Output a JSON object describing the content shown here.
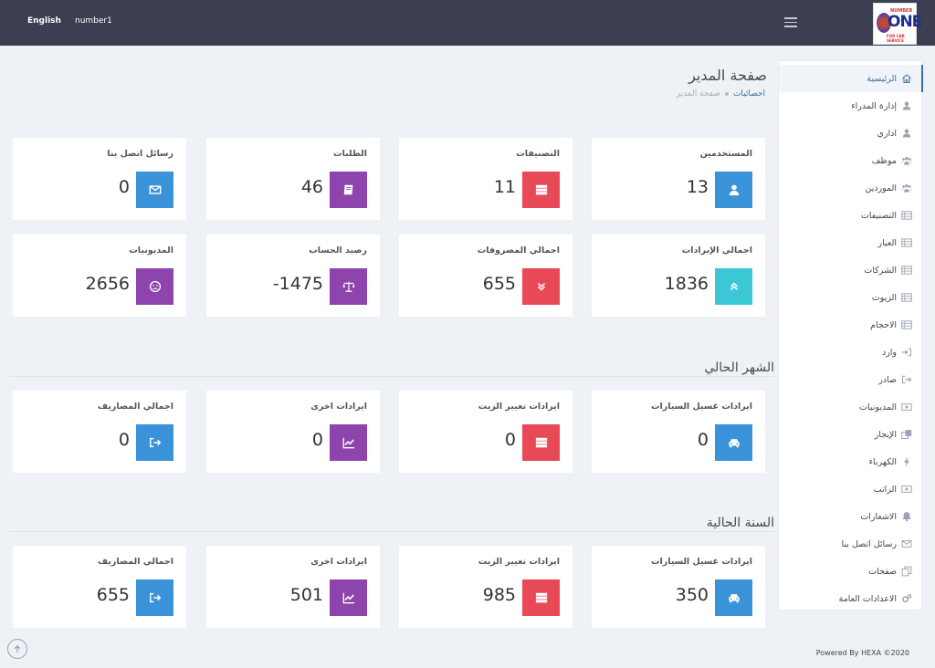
{
  "topbar": {
    "language": "English",
    "username": "number1"
  },
  "logo": {
    "top_text": "NUMBER",
    "main_text": "ONE",
    "bottom_text": "FOR CAR SERVICE"
  },
  "page": {
    "title": "صفحة المدير",
    "breadcrumb_active": "احصائيات",
    "breadcrumb_current": "صفحة المدير"
  },
  "stats": [
    {
      "label": "المستخدمين",
      "value": "13",
      "icon": "user-icon",
      "color": "#3a93d8"
    },
    {
      "label": "التصنيفات",
      "value": "11",
      "icon": "server-icon",
      "color": "#e74a56"
    },
    {
      "label": "الطلبات",
      "value": "46",
      "icon": "book-icon",
      "color": "#8e44ad"
    },
    {
      "label": "رسائل اتصل بنا",
      "value": "0",
      "icon": "envelope-icon",
      "color": "#3a93d8"
    },
    {
      "label": "اجمالي الإيرادات",
      "value": "1836",
      "icon": "chevrons-up-icon",
      "color": "#3cc7d6"
    },
    {
      "label": "اجمالي المصروفات",
      "value": "655",
      "icon": "chevrons-down-icon",
      "color": "#e74a56"
    },
    {
      "label": "رصيد الحساب",
      "value": "-1475",
      "icon": "balance-scale-icon",
      "color": "#8e44ad"
    },
    {
      "label": "المديونيات",
      "value": "2656",
      "icon": "sad-face-icon",
      "color": "#8e44ad"
    }
  ],
  "current_month": {
    "title": "الشهر الحالي",
    "cards": [
      {
        "label": "ايرادات غسيل السيارات",
        "value": "0",
        "icon": "car-icon"
      },
      {
        "label": "ايرادات تغيير الزيت",
        "value": "0",
        "icon": "server-icon"
      },
      {
        "label": "ايرادات اخرى",
        "value": "0",
        "icon": "chart-line-icon"
      },
      {
        "label": "اجمالي المصاريف",
        "value": "0",
        "icon": "sign-out-icon"
      }
    ]
  },
  "current_year": {
    "title": "السنة الحالية",
    "cards": [
      {
        "label": "ايرادات غسيل السيارات",
        "value": "350",
        "icon": "car-icon"
      },
      {
        "label": "ايرادات تغيير الزيت",
        "value": "985",
        "icon": "server-icon"
      },
      {
        "label": "ايرادات اخرى",
        "value": "501",
        "icon": "chart-line-icon"
      },
      {
        "label": "اجمالي المصاريف",
        "value": "655",
        "icon": "sign-out-icon"
      }
    ]
  },
  "sidebar": {
    "items": [
      {
        "label": "الرئيسية",
        "icon": "home-icon"
      },
      {
        "label": "إدارة المدراء",
        "icon": "user-icon"
      },
      {
        "label": "اداري",
        "icon": "user-icon"
      },
      {
        "label": "موظف",
        "icon": "users-icon"
      },
      {
        "label": "الموردين",
        "icon": "users-icon"
      },
      {
        "label": "التصنيفات",
        "icon": "table-icon"
      },
      {
        "label": "العيار",
        "icon": "table-icon"
      },
      {
        "label": "الشركات",
        "icon": "table-icon"
      },
      {
        "label": "الزيوت",
        "icon": "table-icon"
      },
      {
        "label": "الاحجام",
        "icon": "table-icon"
      },
      {
        "label": "وارد",
        "icon": "sign-in-icon"
      },
      {
        "label": "صادر",
        "icon": "sign-out-icon"
      },
      {
        "label": "المديونيات",
        "icon": "money-icon"
      },
      {
        "label": "الإيجار",
        "icon": "clone-icon"
      },
      {
        "label": "الكهرباء",
        "icon": "bolt-icon"
      },
      {
        "label": "الراتب",
        "icon": "money-icon"
      },
      {
        "label": "الاشعارات",
        "icon": "bell-icon"
      },
      {
        "label": "رسائل اتصل بنا",
        "icon": "envelope-icon"
      },
      {
        "label": "صفحات",
        "icon": "copy-icon"
      },
      {
        "label": "الاعدادات العامة",
        "icon": "cogs-icon"
      }
    ]
  },
  "footer": {
    "text": "Powered By HEXA ©2020"
  },
  "colors": {
    "topbar": "#3b3f51",
    "background": "#eef1f6",
    "accent": "#3a6fa8"
  }
}
